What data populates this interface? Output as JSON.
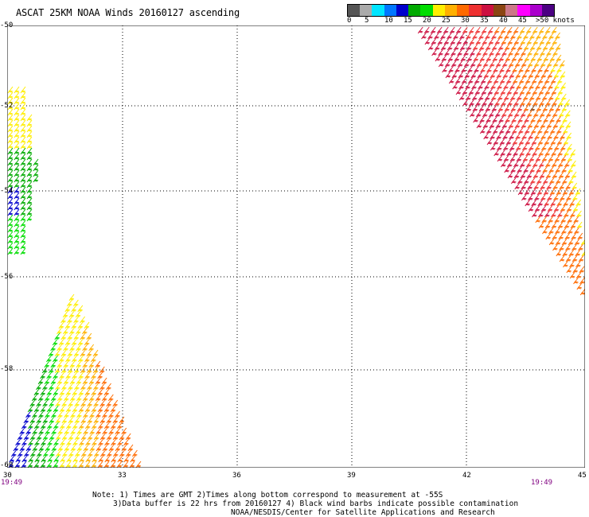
{
  "title": "ASCAT 25KM NOAA Winds 20160127 ascending",
  "legend": {
    "colors": [
      "#555555",
      "#aaaaaa",
      "#00e5ff",
      "#0077ff",
      "#0000cc",
      "#00aa00",
      "#00dd00",
      "#ffee00",
      "#ffb000",
      "#ff6a00",
      "#ee3030",
      "#cc1040",
      "#8b4513",
      "#cc7788",
      "#ff00ff",
      "#aa00cc",
      "#4b0082"
    ],
    "labels": [
      "0",
      "5",
      "10",
      "15",
      "20",
      "25",
      "30",
      "35",
      "40",
      "45",
      ">50 knots"
    ]
  },
  "axes": {
    "lat_labels": [
      "-50",
      "-52",
      "-54",
      "-56",
      "-58",
      "-60"
    ],
    "lon_labels": [
      "30",
      "33",
      "36",
      "39",
      "42",
      "45"
    ]
  },
  "time_labels": [
    "19:49",
    "19:49"
  ],
  "notes": {
    "line1": "Note: 1) Times are GMT 2)Times along bottom correspond to measurement at -55S",
    "line2": "3)Data buffer is 22 hrs from 20160127 4) Black wind barbs indicate possible contamination",
    "line3": "NOAA/NESDIS/Center for Satellite Applications and Research"
  }
}
